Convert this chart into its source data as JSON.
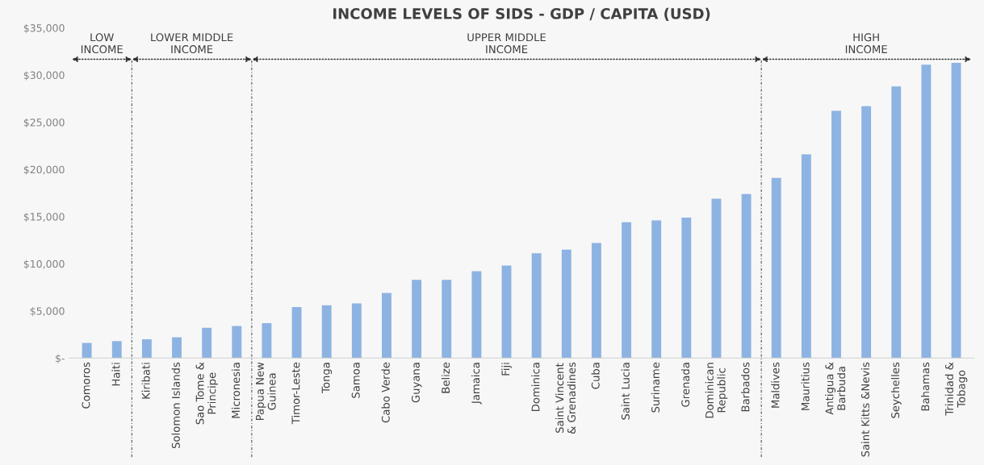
{
  "chart_data": {
    "type": "bar",
    "title": "INCOME LEVELS OF SIDS - GDP / CAPITA (USD)",
    "categories": [
      "Comoros",
      "Haiti",
      "Kiribati",
      "Solomon Islands",
      "Sao Tome &\nPrincipe",
      "Micronesia",
      "Papua New\nGuinea",
      "Timor-Leste",
      "Tonga",
      "Samoa",
      "Cabo Verde",
      "Guyana",
      "Belize",
      "Jamaica",
      "Fiji",
      "Dominica",
      "Saint Vincent\n& Grenadines",
      "Cuba",
      "Saint Lucia",
      "Suriname",
      "Grenada",
      "Dominican\nRepublic",
      "Barbados",
      "Maldives",
      "Mauritius",
      "Antigua &\nBarbuda",
      "Saint Kitts &Nevis",
      "Seychelles",
      "Bahamas",
      "Trinidad &\nTobago"
    ],
    "values": [
      1600,
      1800,
      2000,
      2200,
      3200,
      3400,
      3700,
      5400,
      5600,
      5800,
      6900,
      8300,
      8300,
      9200,
      9800,
      11100,
      11500,
      12200,
      14400,
      14600,
      14900,
      16900,
      17400,
      19100,
      21600,
      26200,
      26700,
      28800,
      31100,
      31300
    ],
    "color": "#8db3e2",
    "ylim": [
      0,
      35000
    ],
    "yticks": [
      {
        "value": 0,
        "label": "$-"
      },
      {
        "value": 5000,
        "label": "$5,000"
      },
      {
        "value": 10000,
        "label": "$10,000"
      },
      {
        "value": 15000,
        "label": "$15,000"
      },
      {
        "value": 20000,
        "label": "$20,000"
      },
      {
        "value": 25000,
        "label": "$25,000"
      },
      {
        "value": 30000,
        "label": "$30,000"
      },
      {
        "value": 35000,
        "label": "$35,000"
      }
    ],
    "grid": false,
    "annotations": [
      "LOW\nINCOME",
      "LOWER MIDDLE\nINCOME",
      "UPPER MIDDLE\nINCOME",
      "HIGH\nINCOME"
    ]
  }
}
